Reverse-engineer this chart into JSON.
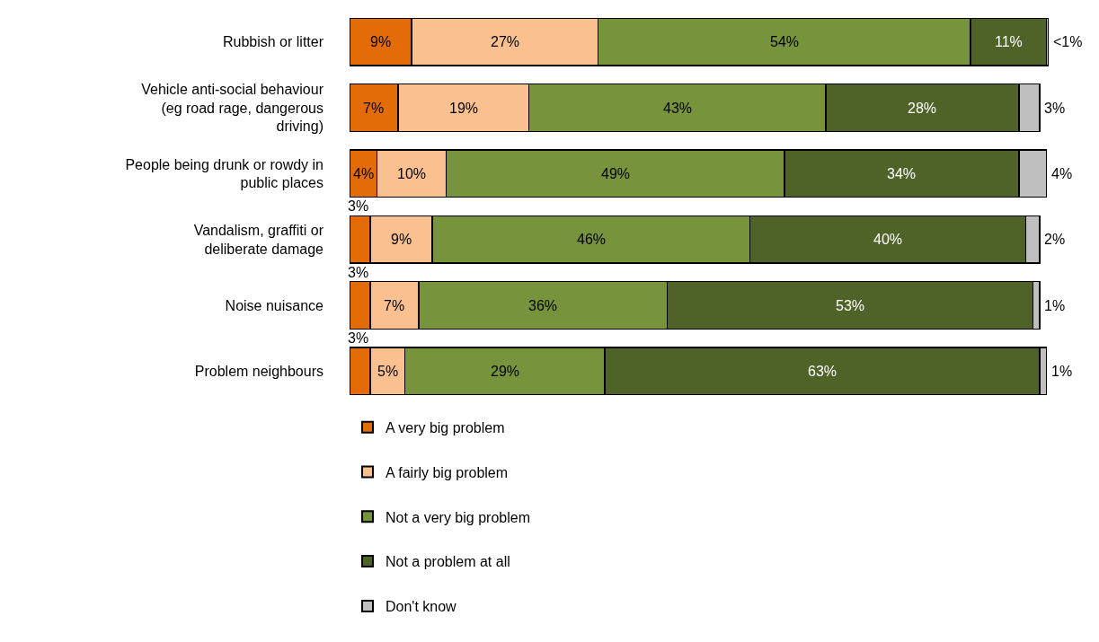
{
  "chart_data": {
    "type": "bar",
    "orientation": "horizontal",
    "stacked": true,
    "legend": "bottom",
    "categories": [
      "Rubbish or litter",
      "Vehicle anti-social behaviour (eg road rage, dangerous driving)",
      "People being drunk or rowdy in public places",
      "Vandalism, graffiti or deliberate damage",
      "Noise nuisance",
      "Problem neighbours"
    ],
    "series": [
      {
        "name": "A very big problem",
        "color": "#e36c09",
        "values": [
          9,
          7,
          4,
          3,
          3,
          3
        ],
        "value_labels": [
          "9%",
          "7%",
          "4%",
          "3%",
          "3%",
          "3%"
        ]
      },
      {
        "name": "A fairly big problem",
        "color": "#fac090",
        "values": [
          27,
          19,
          10,
          9,
          7,
          5
        ],
        "value_labels": [
          "27%",
          "19%",
          "10%",
          "9%",
          "7%",
          "5%"
        ]
      },
      {
        "name": "Not a very big problem",
        "color": "#77933c",
        "values": [
          54,
          43,
          49,
          46,
          36,
          29
        ],
        "value_labels": [
          "54%",
          "43%",
          "49%",
          "46%",
          "36%",
          "29%"
        ]
      },
      {
        "name": "Not a problem at all",
        "color": "#4f6228",
        "values": [
          11,
          28,
          34,
          40,
          53,
          63
        ],
        "value_labels": [
          "11%",
          "28%",
          "34%",
          "40%",
          "53%",
          "63%"
        ]
      },
      {
        "name": "Don't know",
        "color": "#bfbfbf",
        "values": [
          0.3,
          3,
          4,
          2,
          1,
          1
        ],
        "value_labels": [
          "<1%",
          "3%",
          "4%",
          "2%",
          "1%",
          "1%"
        ]
      }
    ]
  }
}
